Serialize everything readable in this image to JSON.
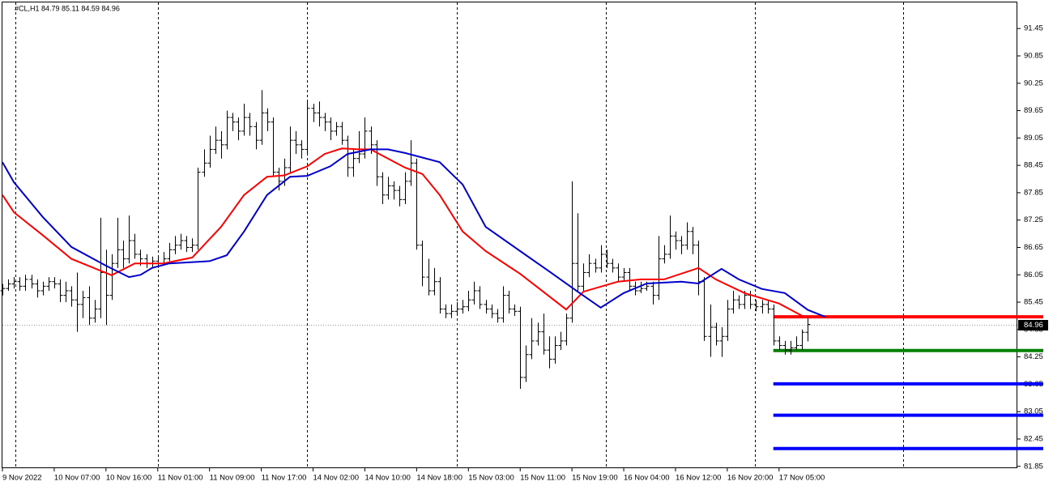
{
  "chart_data": {
    "type": "ohlc",
    "title": "#CL,H1  84.79 85.11 84.59 84.96",
    "xlim": [
      0,
      176
    ],
    "ylim": [
      81.81,
      92.04
    ],
    "xticks": [
      {
        "value": 0,
        "label": "9 Nov 2022"
      },
      {
        "value": 9,
        "label": "10 Nov 07:00"
      },
      {
        "value": 18,
        "label": "10 Nov 16:00"
      },
      {
        "value": 27,
        "label": "11 Nov 01:00"
      },
      {
        "value": 36,
        "label": "11 Nov 09:00"
      },
      {
        "value": 45,
        "label": "11 Nov 17:00"
      },
      {
        "value": 54,
        "label": "14 Nov 02:00"
      },
      {
        "value": 63,
        "label": "14 Nov 10:00"
      },
      {
        "value": 72,
        "label": "14 Nov 18:00"
      },
      {
        "value": 81,
        "label": "15 Nov 03:00"
      },
      {
        "value": 90,
        "label": "15 Nov 11:00"
      },
      {
        "value": 99,
        "label": "15 Nov 19:00"
      },
      {
        "value": 108,
        "label": "16 Nov 04:00"
      },
      {
        "value": 117,
        "label": "16 Nov 12:00"
      },
      {
        "value": 126,
        "label": "16 Nov 20:00"
      },
      {
        "value": 135,
        "label": "17 Nov 05:00"
      }
    ],
    "yticks": [
      91.45,
      90.85,
      90.25,
      89.65,
      89.05,
      88.45,
      87.85,
      87.25,
      86.65,
      86.05,
      85.45,
      84.85,
      84.25,
      83.65,
      83.05,
      82.45,
      81.85
    ],
    "bar_color": "#000000",
    "ohlc": [
      [
        85.7,
        85.85,
        85.6,
        85.75
      ],
      [
        85.75,
        85.95,
        85.7,
        85.85
      ],
      [
        85.85,
        86.0,
        85.75,
        85.9
      ],
      [
        85.9,
        86.0,
        85.7,
        85.8
      ],
      [
        85.8,
        86.05,
        85.7,
        85.95
      ],
      [
        85.95,
        86.05,
        85.75,
        85.85
      ],
      [
        85.85,
        85.95,
        85.55,
        85.7
      ],
      [
        85.7,
        85.9,
        85.6,
        85.8
      ],
      [
        85.8,
        86.0,
        85.7,
        85.9
      ],
      [
        85.9,
        86.0,
        85.75,
        85.85
      ],
      [
        85.85,
        85.95,
        85.45,
        85.6
      ],
      [
        85.6,
        85.9,
        85.45,
        85.7
      ],
      [
        85.7,
        85.8,
        85.35,
        85.5
      ],
      [
        85.5,
        86.1,
        84.8,
        85.4
      ],
      [
        85.4,
        85.7,
        85.1,
        85.55
      ],
      [
        85.55,
        85.8,
        84.95,
        85.1
      ],
      [
        85.1,
        85.5,
        85.0,
        85.3
      ],
      [
        85.3,
        87.3,
        85.1,
        86.1
      ],
      [
        86.1,
        86.6,
        84.95,
        85.6
      ],
      [
        85.6,
        86.5,
        85.5,
        86.3
      ],
      [
        86.3,
        87.3,
        86.2,
        86.6
      ],
      [
        86.6,
        86.8,
        86.2,
        86.4
      ],
      [
        86.4,
        87.35,
        86.3,
        86.8
      ],
      [
        86.8,
        86.95,
        86.4,
        86.5
      ],
      [
        86.5,
        86.6,
        86.25,
        86.4
      ],
      [
        86.4,
        86.5,
        86.2,
        86.3
      ],
      [
        86.3,
        86.45,
        86.2,
        86.35
      ],
      [
        86.35,
        86.45,
        86.2,
        86.3
      ],
      [
        86.3,
        86.55,
        86.25,
        86.4
      ],
      [
        86.4,
        86.75,
        86.35,
        86.6
      ],
      [
        86.6,
        86.9,
        86.5,
        86.7
      ],
      [
        86.7,
        86.95,
        86.6,
        86.8
      ],
      [
        86.8,
        86.9,
        86.55,
        86.65
      ],
      [
        86.65,
        86.85,
        86.55,
        86.7
      ],
      [
        86.7,
        88.4,
        86.6,
        88.3
      ],
      [
        88.3,
        88.8,
        88.2,
        88.5
      ],
      [
        88.5,
        89.1,
        88.4,
        88.8
      ],
      [
        88.8,
        89.3,
        88.7,
        89.0
      ],
      [
        89.0,
        89.2,
        88.6,
        88.9
      ],
      [
        88.9,
        89.65,
        88.8,
        89.5
      ],
      [
        89.5,
        89.6,
        89.2,
        89.4
      ],
      [
        89.4,
        89.5,
        89.0,
        89.2
      ],
      [
        89.2,
        89.8,
        89.1,
        89.5
      ],
      [
        89.5,
        89.6,
        89.1,
        89.3
      ],
      [
        89.3,
        89.4,
        88.8,
        89.0
      ],
      [
        89.0,
        90.1,
        88.9,
        89.6
      ],
      [
        89.6,
        89.7,
        89.2,
        89.4
      ],
      [
        89.4,
        89.5,
        88.2,
        88.3
      ],
      [
        88.3,
        88.4,
        87.9,
        88.1
      ],
      [
        88.1,
        88.6,
        88.0,
        88.4
      ],
      [
        88.4,
        89.3,
        88.3,
        89.0
      ],
      [
        89.0,
        89.2,
        88.7,
        88.9
      ],
      [
        88.9,
        89.0,
        88.6,
        88.8
      ],
      [
        88.8,
        89.85,
        88.7,
        89.7
      ],
      [
        89.7,
        89.8,
        89.4,
        89.6
      ],
      [
        89.6,
        89.85,
        89.3,
        89.5
      ],
      [
        89.5,
        89.6,
        89.2,
        89.4
      ],
      [
        89.4,
        89.5,
        89.0,
        89.2
      ],
      [
        89.2,
        89.4,
        89.1,
        89.3
      ],
      [
        89.3,
        89.4,
        88.9,
        89.0
      ],
      [
        89.0,
        89.1,
        88.2,
        88.4
      ],
      [
        88.4,
        88.8,
        88.2,
        88.6
      ],
      [
        88.6,
        89.2,
        88.5,
        88.7
      ],
      [
        88.7,
        89.5,
        88.6,
        89.2
      ],
      [
        89.2,
        89.3,
        88.7,
        88.9
      ],
      [
        88.9,
        89.0,
        88.0,
        88.2
      ],
      [
        88.2,
        88.3,
        87.6,
        87.8
      ],
      [
        87.8,
        88.2,
        87.7,
        88.0
      ],
      [
        88.0,
        88.1,
        87.7,
        87.9
      ],
      [
        87.9,
        88.0,
        87.55,
        87.7
      ],
      [
        87.7,
        88.3,
        87.6,
        88.1
      ],
      [
        88.1,
        89.0,
        88.0,
        88.5
      ],
      [
        88.5,
        88.6,
        86.6,
        86.7
      ],
      [
        86.7,
        86.8,
        85.8,
        86.0
      ],
      [
        86.0,
        86.4,
        85.6,
        85.7
      ],
      [
        85.7,
        86.2,
        85.6,
        85.9
      ],
      [
        85.9,
        86.0,
        85.2,
        85.3
      ],
      [
        85.3,
        85.4,
        85.1,
        85.2
      ],
      [
        85.2,
        85.4,
        85.1,
        85.25
      ],
      [
        85.25,
        85.45,
        85.15,
        85.3
      ],
      [
        85.3,
        85.5,
        85.2,
        85.35
      ],
      [
        85.35,
        85.7,
        85.25,
        85.5
      ],
      [
        85.5,
        85.9,
        85.4,
        85.7
      ],
      [
        85.7,
        85.8,
        85.3,
        85.4
      ],
      [
        85.4,
        85.5,
        85.2,
        85.3
      ],
      [
        85.3,
        85.4,
        85.1,
        85.2
      ],
      [
        85.2,
        85.3,
        85.0,
        85.1
      ],
      [
        85.1,
        85.8,
        85.0,
        85.6
      ],
      [
        85.6,
        85.7,
        85.2,
        85.3
      ],
      [
        85.3,
        85.4,
        85.15,
        85.25
      ],
      [
        85.25,
        85.35,
        83.55,
        83.8
      ],
      [
        83.8,
        84.5,
        83.7,
        84.3
      ],
      [
        84.3,
        85.1,
        84.2,
        84.6
      ],
      [
        84.6,
        85.0,
        84.5,
        84.8
      ],
      [
        84.8,
        85.2,
        84.3,
        84.4
      ],
      [
        84.4,
        84.7,
        84.0,
        84.2
      ],
      [
        84.2,
        84.7,
        84.1,
        84.5
      ],
      [
        84.5,
        84.8,
        84.4,
        84.6
      ],
      [
        84.6,
        85.2,
        84.5,
        85.1
      ],
      [
        85.1,
        88.1,
        85.0,
        86.3
      ],
      [
        86.3,
        87.4,
        85.7,
        85.8
      ],
      [
        85.8,
        86.3,
        85.7,
        86.1
      ],
      [
        86.1,
        86.5,
        86.0,
        86.3
      ],
      [
        86.3,
        86.4,
        86.1,
        86.2
      ],
      [
        86.2,
        86.7,
        86.1,
        86.5
      ],
      [
        86.5,
        86.6,
        86.2,
        86.3
      ],
      [
        86.3,
        86.4,
        86.1,
        86.2
      ],
      [
        86.2,
        86.3,
        85.9,
        86.0
      ],
      [
        86.0,
        86.2,
        85.9,
        86.1
      ],
      [
        86.1,
        86.2,
        85.7,
        85.8
      ],
      [
        85.8,
        85.9,
        85.6,
        85.7
      ],
      [
        85.7,
        85.9,
        85.65,
        85.75
      ],
      [
        85.75,
        85.9,
        85.7,
        85.8
      ],
      [
        85.8,
        85.9,
        85.4,
        85.6
      ],
      [
        85.6,
        86.9,
        85.5,
        86.4
      ],
      [
        86.4,
        86.7,
        86.3,
        86.5
      ],
      [
        86.5,
        87.35,
        86.4,
        86.9
      ],
      [
        86.9,
        87.0,
        86.6,
        86.8
      ],
      [
        86.8,
        86.9,
        86.5,
        86.7
      ],
      [
        86.7,
        87.2,
        86.6,
        87.0
      ],
      [
        87.0,
        87.1,
        86.5,
        86.7
      ],
      [
        86.7,
        86.8,
        85.6,
        85.9
      ],
      [
        85.9,
        86.0,
        84.6,
        84.7
      ],
      [
        84.7,
        85.4,
        84.25,
        84.9
      ],
      [
        84.9,
        85.0,
        84.5,
        84.6
      ],
      [
        84.6,
        84.9,
        84.25,
        84.7
      ],
      [
        84.7,
        85.5,
        84.6,
        85.3
      ],
      [
        85.3,
        85.7,
        85.2,
        85.5
      ],
      [
        85.5,
        85.6,
        85.3,
        85.4
      ],
      [
        85.4,
        85.7,
        85.3,
        85.6
      ],
      [
        85.6,
        85.7,
        85.3,
        85.4
      ],
      [
        85.4,
        85.5,
        85.25,
        85.35
      ],
      [
        85.35,
        85.5,
        85.2,
        85.4
      ],
      [
        85.4,
        85.5,
        85.2,
        85.3
      ],
      [
        85.3,
        85.4,
        84.5,
        84.6
      ],
      [
        84.6,
        84.7,
        84.4,
        84.5
      ],
      [
        84.5,
        84.6,
        84.3,
        84.4
      ],
      [
        84.4,
        84.6,
        84.3,
        84.45
      ],
      [
        84.45,
        84.7,
        84.4,
        84.5
      ],
      [
        84.5,
        84.85,
        84.4,
        84.79
      ],
      [
        84.79,
        85.11,
        84.59,
        84.96
      ]
    ],
    "series": [
      {
        "color": "#ff0000",
        "x": [
          0,
          2,
          7,
          12,
          19,
          23,
          28,
          33,
          38,
          42,
          46,
          49,
          53,
          56,
          59,
          62,
          64,
          67,
          70,
          73,
          76,
          80,
          84,
          90,
          94,
          98,
          101,
          107,
          111,
          115,
          121,
          124,
          129,
          135,
          139,
          140
        ],
        "values": [
          87.8,
          87.42,
          86.92,
          86.4,
          86.04,
          86.3,
          86.3,
          86.43,
          87.1,
          87.8,
          88.2,
          88.23,
          88.43,
          88.7,
          88.82,
          88.8,
          88.8,
          88.6,
          88.4,
          88.26,
          87.8,
          87.0,
          86.57,
          86.07,
          85.68,
          85.29,
          85.68,
          85.9,
          85.95,
          85.95,
          86.2,
          85.95,
          85.65,
          85.42,
          85.15,
          85.13
        ]
      },
      {
        "color": "#0000cc",
        "x": [
          0,
          2,
          7,
          12,
          18,
          22,
          24,
          26,
          29,
          36,
          39,
          42,
          46,
          50,
          53,
          57,
          60,
          64,
          67,
          70,
          76,
          80,
          84,
          90,
          95,
          100,
          104,
          108,
          112,
          118,
          121,
          125,
          128,
          132,
          136,
          140,
          143
        ],
        "values": [
          88.52,
          88.08,
          87.32,
          86.66,
          86.25,
          86.0,
          86.05,
          86.2,
          86.3,
          86.35,
          86.48,
          87.0,
          87.8,
          88.2,
          88.22,
          88.43,
          88.7,
          88.8,
          88.8,
          88.72,
          88.52,
          88.03,
          87.1,
          86.57,
          86.13,
          85.68,
          85.33,
          85.65,
          85.86,
          85.9,
          85.86,
          86.18,
          85.95,
          85.74,
          85.65,
          85.28,
          85.13
        ]
      }
    ],
    "levels": [
      {
        "value": 85.13,
        "color": "#ff0000",
        "from_x": 134
      },
      {
        "value": 84.39,
        "color": "#008000",
        "from_x": 134
      },
      {
        "value": 83.66,
        "color": "#0000ff",
        "from_x": 134
      },
      {
        "value": 82.97,
        "color": "#0000ff",
        "from_x": 134
      },
      {
        "value": 82.24,
        "color": "#0000ff",
        "from_x": 134
      }
    ]
  }
}
